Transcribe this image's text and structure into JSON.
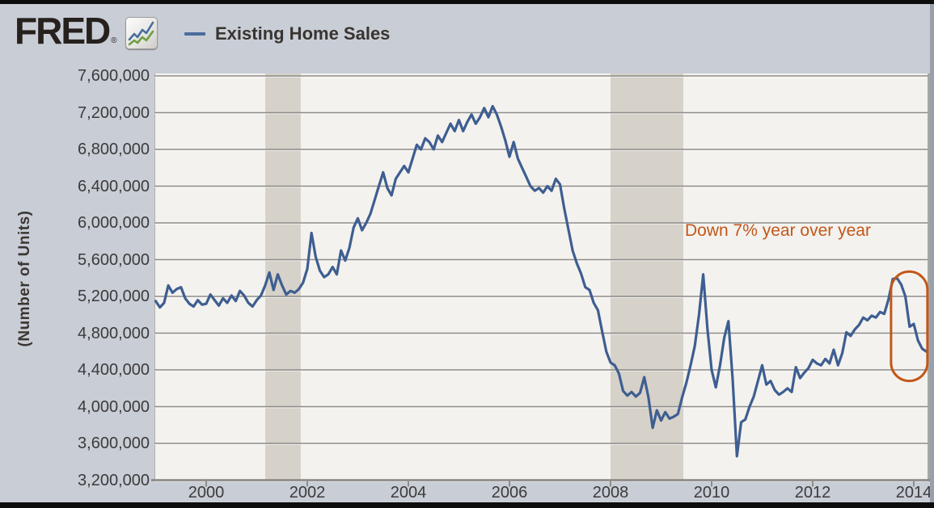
{
  "header": {
    "logo_text": "FRED",
    "registered_mark": "®",
    "logo_icon": "fred-sparkline-icon",
    "legend": {
      "series_label": "Existing Home Sales",
      "series_color": "#4a6d9d"
    }
  },
  "chart_data": {
    "type": "line",
    "series_name": "Existing Home Sales",
    "ylabel": "(Number of Units)",
    "xlabel": "",
    "xlim": [
      1999.0,
      2014.35
    ],
    "ylim": [
      3200000,
      7600000
    ],
    "grid": true,
    "legend_position": "top-left",
    "x_ticks": [
      {
        "label": "2000",
        "year": 2000
      },
      {
        "label": "2002",
        "year": 2002
      },
      {
        "label": "2004",
        "year": 2004
      },
      {
        "label": "2006",
        "year": 2006
      },
      {
        "label": "2008",
        "year": 2008
      },
      {
        "label": "2010",
        "year": 2010
      },
      {
        "label": "2012",
        "year": 2012
      },
      {
        "label": "2014",
        "year": 2014
      }
    ],
    "y_ticks": [
      {
        "label": "7,600,000",
        "value": 7600000
      },
      {
        "label": "7,200,000",
        "value": 7200000
      },
      {
        "label": "6,800,000",
        "value": 6800000
      },
      {
        "label": "6,400,000",
        "value": 6400000
      },
      {
        "label": "6,000,000",
        "value": 6000000
      },
      {
        "label": "5,600,000",
        "value": 5600000
      },
      {
        "label": "5,200,000",
        "value": 5200000
      },
      {
        "label": "4,800,000",
        "value": 4800000
      },
      {
        "label": "4,400,000",
        "value": 4400000
      },
      {
        "label": "4,000,000",
        "value": 4000000
      },
      {
        "label": "3,600,000",
        "value": 3600000
      },
      {
        "label": "3,200,000",
        "value": 3200000
      }
    ],
    "frequency": "monthly",
    "x_start_year": 1999,
    "values": [
      5150000,
      5080000,
      5130000,
      5320000,
      5240000,
      5280000,
      5300000,
      5180000,
      5120000,
      5090000,
      5160000,
      5110000,
      5120000,
      5220000,
      5160000,
      5100000,
      5180000,
      5130000,
      5210000,
      5150000,
      5260000,
      5210000,
      5130000,
      5090000,
      5160000,
      5210000,
      5320000,
      5460000,
      5270000,
      5440000,
      5320000,
      5220000,
      5260000,
      5240000,
      5280000,
      5350000,
      5500000,
      5890000,
      5630000,
      5480000,
      5410000,
      5440000,
      5520000,
      5440000,
      5700000,
      5590000,
      5730000,
      5950000,
      6050000,
      5920000,
      6000000,
      6100000,
      6250000,
      6400000,
      6550000,
      6380000,
      6300000,
      6480000,
      6550000,
      6620000,
      6550000,
      6700000,
      6850000,
      6800000,
      6920000,
      6880000,
      6800000,
      6950000,
      6880000,
      6980000,
      7080000,
      7000000,
      7120000,
      7000000,
      7100000,
      7180000,
      7080000,
      7150000,
      7250000,
      7150000,
      7270000,
      7180000,
      7050000,
      6900000,
      6720000,
      6880000,
      6700000,
      6600000,
      6500000,
      6400000,
      6350000,
      6380000,
      6330000,
      6400000,
      6350000,
      6480000,
      6420000,
      6160000,
      5930000,
      5700000,
      5560000,
      5450000,
      5300000,
      5270000,
      5130000,
      5050000,
      4820000,
      4600000,
      4480000,
      4450000,
      4360000,
      4170000,
      4120000,
      4160000,
      4110000,
      4150000,
      4320000,
      4100000,
      3770000,
      3960000,
      3850000,
      3940000,
      3870000,
      3890000,
      3920000,
      4100000,
      4260000,
      4450000,
      4660000,
      5000000,
      5440000,
      4850000,
      4400000,
      4210000,
      4450000,
      4750000,
      4930000,
      4300000,
      3460000,
      3830000,
      3860000,
      4000000,
      4110000,
      4280000,
      4450000,
      4240000,
      4280000,
      4180000,
      4130000,
      4160000,
      4200000,
      4160000,
      4430000,
      4310000,
      4370000,
      4420000,
      4510000,
      4470000,
      4450000,
      4520000,
      4470000,
      4620000,
      4450000,
      4580000,
      4810000,
      4770000,
      4840000,
      4890000,
      4970000,
      4940000,
      4990000,
      4970000,
      5030000,
      5010000,
      5170000,
      5390000,
      5400000,
      5330000,
      5200000,
      4870000,
      4900000,
      4720000,
      4630000,
      4600000
    ],
    "recession_bands": [
      {
        "from": 2001.17,
        "to": 2001.87
      },
      {
        "from": 2008.0,
        "to": 2009.44
      }
    ],
    "annotations": {
      "text": {
        "label": "Down 7% year over year",
        "color": "#c2571a"
      },
      "ellipse": {
        "x_from": 2013.55,
        "x_to": 2014.27,
        "value_from": 4280000,
        "value_to": 5470000,
        "color": "#c2571a"
      }
    },
    "colors": {
      "line": "#3d5e91",
      "plot_bg": "#f4f2ee",
      "recession_band": "#d6d1c9",
      "gridline": "#8e8c89",
      "outer_bg": "#c9cdd6",
      "axis_text": "#3b3b3b"
    }
  }
}
